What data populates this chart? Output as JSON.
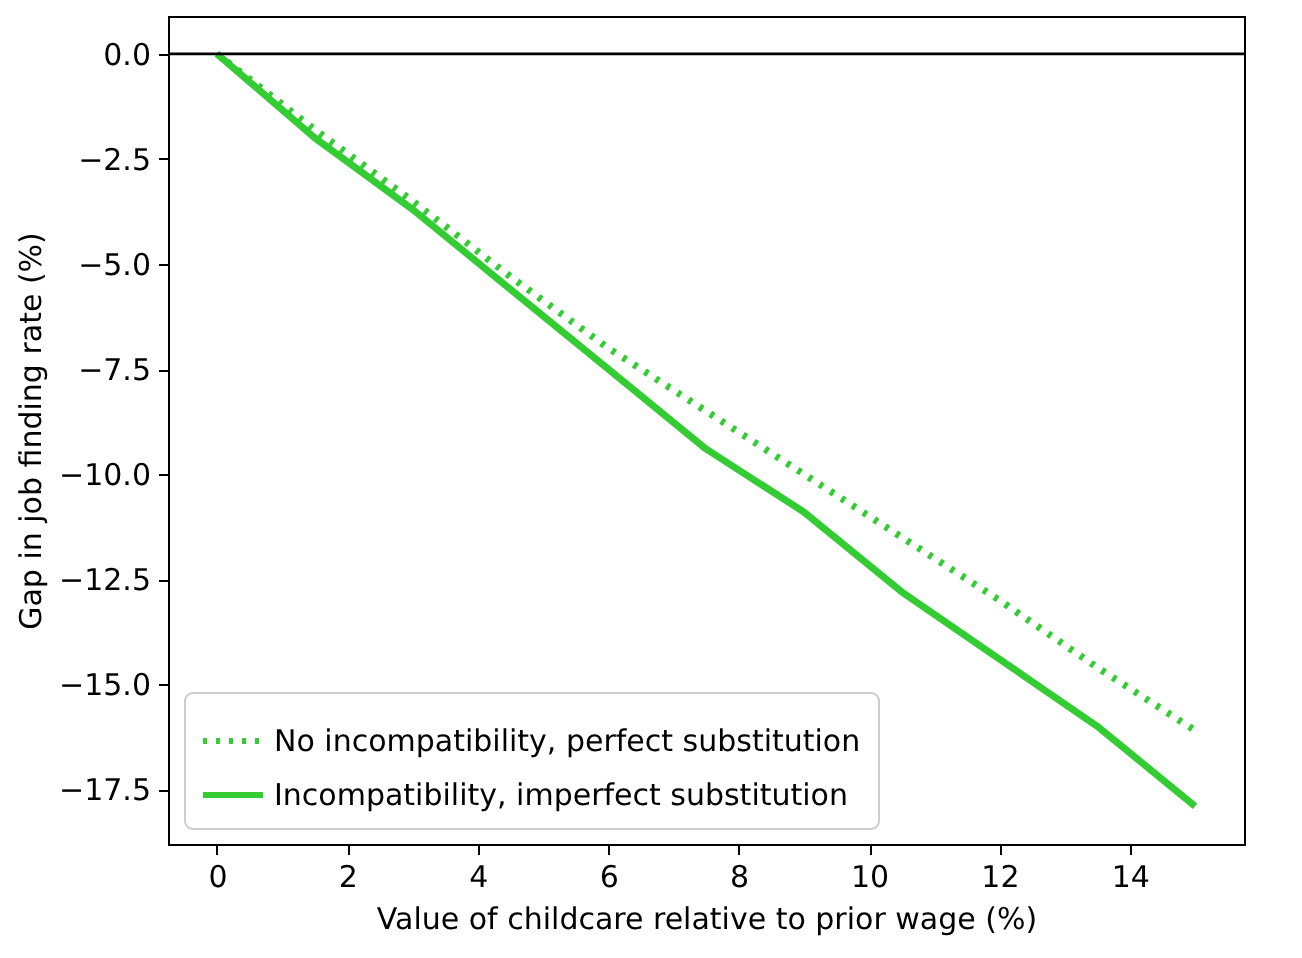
{
  "chart_data": {
    "type": "line",
    "xlabel": "Value of childcare relative to prior wage (%)",
    "ylabel": "Gap in job finding rate (%)",
    "x": [
      0,
      1.5,
      3,
      4.5,
      6,
      7.5,
      9,
      10.5,
      12,
      13.5,
      15
    ],
    "series": [
      {
        "name": "No incompatibility, perfect substitution",
        "color": "#33cc33",
        "line_style": "dotted",
        "values": [
          0,
          -1.8,
          -3.5,
          -5.3,
          -7.0,
          -8.5,
          -10.0,
          -11.5,
          -13.0,
          -14.6,
          -16.1
        ]
      },
      {
        "name": "Incompatibility, imperfect substitution",
        "color": "#33cc33",
        "line_style": "solid",
        "values": [
          0,
          -2.0,
          -3.7,
          -5.6,
          -7.5,
          -9.4,
          -10.9,
          -12.8,
          -14.4,
          -16.0,
          -17.9
        ]
      }
    ],
    "xlim": [
      -0.75,
      15.75
    ],
    "xticks": [
      0,
      2,
      4,
      6,
      8,
      10,
      12,
      14
    ],
    "ylim": [
      -18.8,
      0.9
    ],
    "yticks": [
      {
        "value": 0,
        "label": "0.0"
      },
      {
        "value": -2.5,
        "label": "−2.5"
      },
      {
        "value": -5,
        "label": "−5.0"
      },
      {
        "value": -7.5,
        "label": "−7.5"
      },
      {
        "value": -10,
        "label": "−10.0"
      },
      {
        "value": -12.5,
        "label": "−12.5"
      },
      {
        "value": -15,
        "label": "−15.0"
      },
      {
        "value": -17.5,
        "label": "−17.5"
      }
    ],
    "ref_lines": [
      {
        "axis": "y",
        "value": 0,
        "color": "#000000"
      }
    ],
    "grid": false,
    "legend": "bottom left",
    "marker": "none"
  }
}
